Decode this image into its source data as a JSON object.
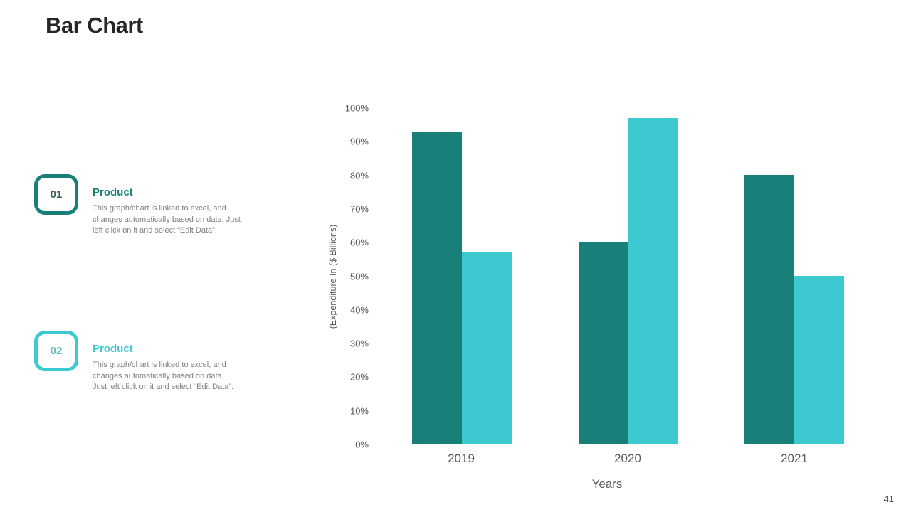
{
  "title": "Bar Chart",
  "page_number": "41",
  "items": [
    {
      "number": "01",
      "heading": "Product",
      "accent": "#187F79",
      "number_color": "#3A615E",
      "lines": [
        "This graph/chart is linked to excel, and",
        "changes automatically  based on data. Just",
        "left click on it and select “Edit Data”."
      ]
    },
    {
      "number": "02",
      "heading": "Product",
      "accent": "#3CC9CF",
      "number_color": "#5CBCC0",
      "lines": [
        "This graph/chart is linked to excel, and",
        "changes automatically  based on data.",
        "Just left click on it and select “Edit Data”."
      ]
    }
  ],
  "chart_data": {
    "type": "bar",
    "categories": [
      "2019",
      "2020",
      "2021"
    ],
    "series": [
      {
        "name": "Product 01",
        "color": "#187F79",
        "values": [
          93,
          60,
          80
        ]
      },
      {
        "name": "Product 02",
        "color": "#3CC9CF",
        "values": [
          57,
          97,
          50
        ]
      }
    ],
    "title": "",
    "xlabel": "Years",
    "ylabel": "(Expenditure In ($ Billions)",
    "ylim": [
      0,
      100
    ],
    "ytick_step": 10,
    "ytick_suffix": "%",
    "grid": false,
    "legend": false,
    "axis_color": "#BFBFBF",
    "tick_label_color": "#595959"
  }
}
